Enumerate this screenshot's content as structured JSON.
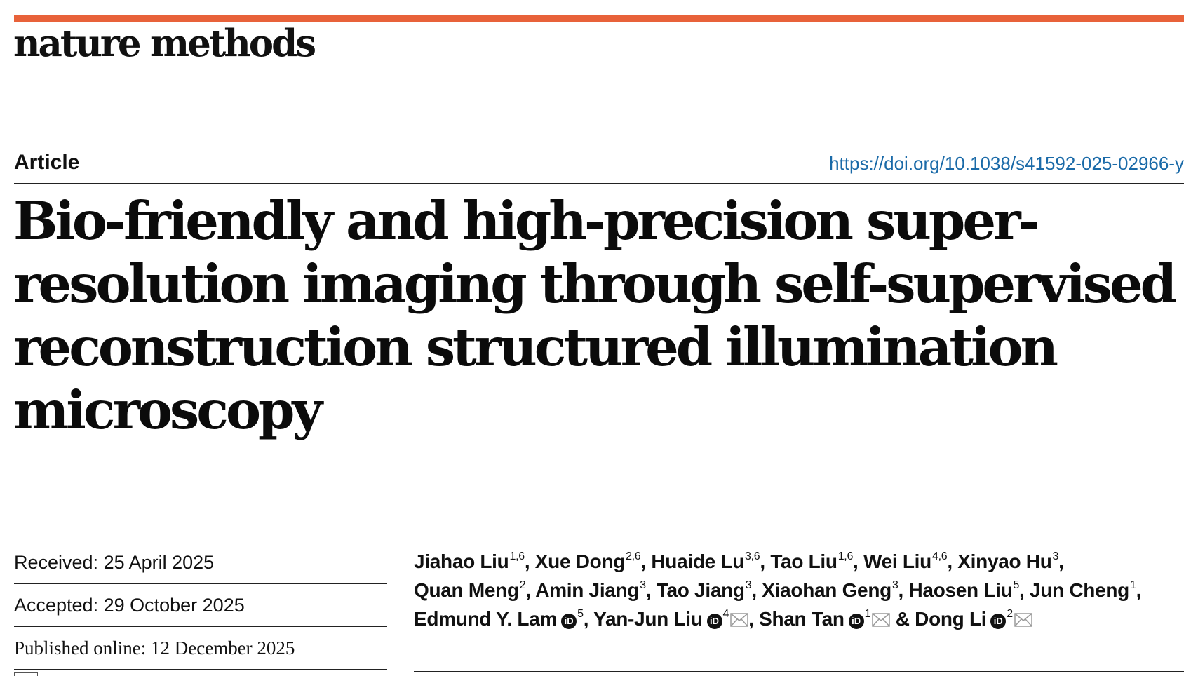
{
  "header": {
    "journal": "nature methods",
    "accent_color": "#e8623a"
  },
  "article": {
    "type": "Article",
    "doi": "https://doi.org/10.1038/s41592-025-02966-y",
    "title": "Bio-friendly and high-precision super-resolution imaging through self-supervised reconstruction structured illumination microscopy"
  },
  "dates": {
    "received": "Received: 25 April 2025",
    "accepted": "Accepted: 29 October 2025",
    "published": "Published online: 12 December 2025"
  },
  "authors": [
    {
      "name": "Jiahao Liu",
      "aff": "1,6",
      "sep": ", "
    },
    {
      "name": "Xue Dong",
      "aff": "2,6",
      "sep": ", "
    },
    {
      "name": "Huaide Lu",
      "aff": "3,6",
      "sep": ", "
    },
    {
      "name": "Tao Liu",
      "aff": "1,6",
      "sep": ", "
    },
    {
      "name": "Wei Liu",
      "aff": "4,6",
      "sep": ", "
    },
    {
      "name": "Xinyao Hu",
      "aff": "3",
      "sep": ", "
    },
    {
      "name": "Quan Meng",
      "aff": "2",
      "sep": ", "
    },
    {
      "name": "Amin Jiang",
      "aff": "3",
      "sep": ", "
    },
    {
      "name": "Tao Jiang",
      "aff": "3",
      "sep": ", "
    },
    {
      "name": "Xiaohan Geng",
      "aff": "3",
      "sep": ", "
    },
    {
      "name": "Haosen Liu",
      "aff": "5",
      "sep": ", "
    },
    {
      "name": "Jun Cheng",
      "aff": "1",
      "sep": ", "
    },
    {
      "name": "Edmund Y. Lam",
      "aff": "5",
      "sep": ", ",
      "orcid": true
    },
    {
      "name": "Yan-Jun Liu",
      "aff": "4",
      "sep": ", ",
      "orcid": true,
      "email": true
    },
    {
      "name": "Shan Tan",
      "aff": "1",
      "sep": " & ",
      "orcid": true,
      "email": true
    },
    {
      "name": "Dong Li",
      "aff": "2",
      "sep": "",
      "orcid": true,
      "email": true
    }
  ],
  "icons": {
    "orcid": "orcid-icon",
    "email": "envelope-icon"
  }
}
